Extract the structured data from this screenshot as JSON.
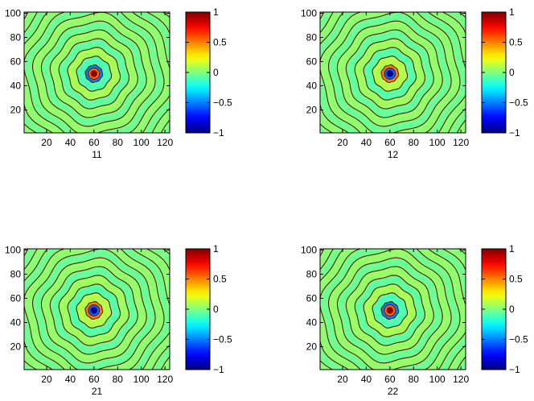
{
  "chart_data": [
    {
      "type": "heatmap",
      "xlabel": "11",
      "x_ticks": [
        20,
        40,
        60,
        80,
        100,
        120
      ],
      "y_ticks": [
        20,
        40,
        60,
        80,
        100
      ],
      "xlim": [
        1,
        124
      ],
      "ylim": [
        1,
        101
      ],
      "center": [
        60,
        50
      ],
      "center_value": 1,
      "ring_count": 12,
      "ring_levels": [
        -0.5,
        -0.1,
        0.08,
        -0.06,
        0.05,
        -0.04,
        0.04,
        -0.03,
        0.03,
        -0.025,
        0.02,
        -0.02
      ],
      "colorbar": {
        "min": -1,
        "max": 1,
        "ticks": [
          1,
          0.5,
          0,
          -0.5,
          -1
        ],
        "tick_labels": [
          "1",
          "0.5",
          "0",
          "−0.5",
          "−1"
        ]
      }
    },
    {
      "type": "heatmap",
      "xlabel": "12",
      "x_ticks": [
        20,
        40,
        60,
        80,
        100,
        120
      ],
      "y_ticks": [
        20,
        40,
        60,
        80,
        100
      ],
      "xlim": [
        1,
        124
      ],
      "ylim": [
        1,
        101
      ],
      "center": [
        60,
        50
      ],
      "center_value": -1,
      "ring_count": 12,
      "ring_levels": [
        0.5,
        0.1,
        -0.08,
        0.06,
        -0.05,
        0.04,
        -0.04,
        0.03,
        -0.03,
        0.025,
        -0.02,
        0.02
      ],
      "colorbar": {
        "min": -1,
        "max": 1,
        "ticks": [
          1,
          0.5,
          0,
          -0.5,
          -1
        ],
        "tick_labels": [
          "1",
          "0.5",
          "0",
          "−0.5",
          "−1"
        ]
      }
    },
    {
      "type": "heatmap",
      "xlabel": "21",
      "x_ticks": [
        20,
        40,
        60,
        80,
        100,
        120
      ],
      "y_ticks": [
        20,
        40,
        60,
        80,
        100
      ],
      "xlim": [
        1,
        124
      ],
      "ylim": [
        1,
        101
      ],
      "center": [
        60,
        50
      ],
      "center_value": -1,
      "ring_count": 12,
      "ring_levels": [
        0.5,
        0.1,
        -0.08,
        0.06,
        -0.05,
        0.04,
        -0.04,
        0.03,
        -0.03,
        0.025,
        -0.02,
        0.02
      ],
      "colorbar": {
        "min": -1,
        "max": 1,
        "ticks": [
          1,
          0.5,
          0,
          -0.5,
          -1
        ],
        "tick_labels": [
          "1",
          "0.5",
          "0",
          "−0.5",
          "−1"
        ]
      }
    },
    {
      "type": "heatmap",
      "xlabel": "22",
      "x_ticks": [
        20,
        40,
        60,
        80,
        100,
        120
      ],
      "y_ticks": [
        20,
        40,
        60,
        80,
        100
      ],
      "xlim": [
        1,
        124
      ],
      "ylim": [
        1,
        101
      ],
      "center": [
        60,
        50
      ],
      "center_value": 1,
      "ring_count": 12,
      "ring_levels": [
        -0.5,
        -0.1,
        0.08,
        -0.06,
        0.05,
        -0.04,
        0.04,
        -0.03,
        0.03,
        -0.025,
        0.02,
        -0.02
      ],
      "colorbar": {
        "min": -1,
        "max": 1,
        "ticks": [
          1,
          0.5,
          0,
          -0.5,
          -1
        ],
        "tick_labels": [
          "1",
          "0.5",
          "0",
          "−0.5",
          "−1"
        ]
      }
    }
  ]
}
